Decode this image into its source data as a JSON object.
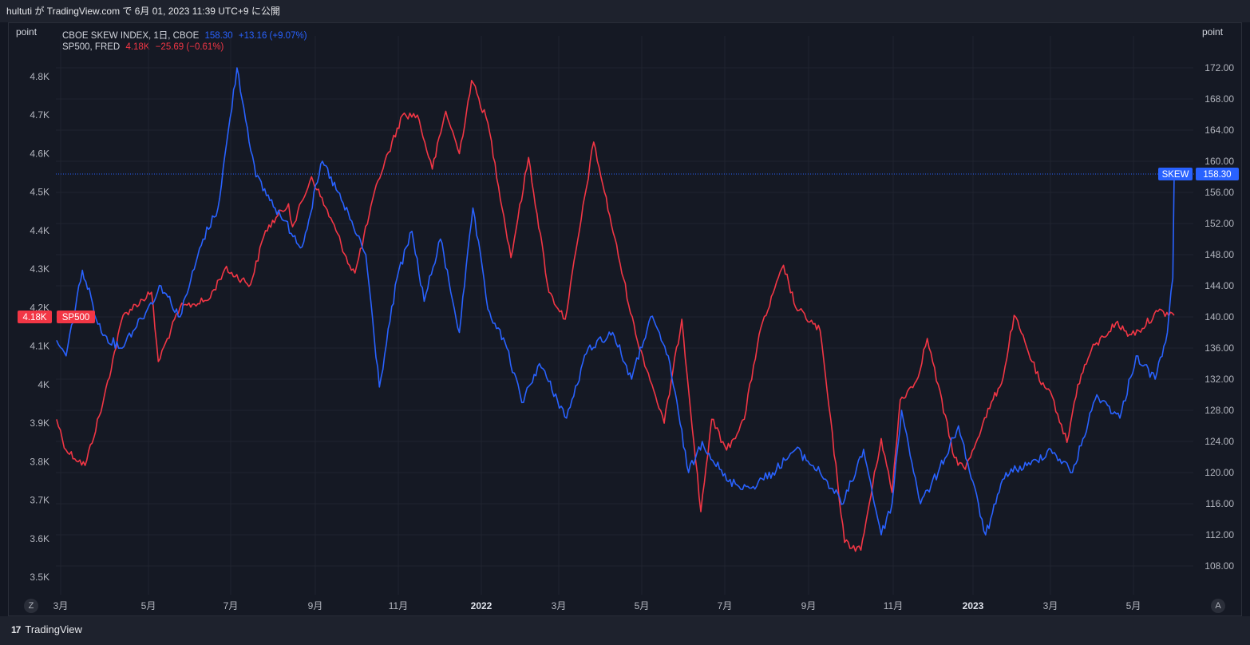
{
  "header": {
    "text": "hultuti が TradingView.com で 6月 01, 2023 11:39 UTC+9 に公開"
  },
  "units": {
    "left": "point",
    "right": "point"
  },
  "legend": [
    {
      "name": "CBOE SKEW INDEX, 1日, CBOE",
      "value": "158.30",
      "change": "+13.16 (+9.07%)"
    },
    {
      "name": "SP500, FRED",
      "value": "4.18K",
      "change": "−25.69 (−0.61%)"
    }
  ],
  "badges": {
    "sp500_value": "4.18K",
    "sp500_label": "SP500",
    "skew_label": "SKEW",
    "skew_value": "158.30"
  },
  "corner": {
    "left": "Z",
    "right": "A"
  },
  "footer": {
    "brand": "TradingView",
    "logo": "17"
  },
  "colors": {
    "skew": "#2962ff",
    "sp500": "#f23645",
    "background": "#131722"
  },
  "chart_data": {
    "type": "line",
    "x_ticks": [
      "3月",
      "5月",
      "7月",
      "9月",
      "11月",
      "2022",
      "3月",
      "5月",
      "7月",
      "9月",
      "11月",
      "2023",
      "3月",
      "5月"
    ],
    "left_axis": {
      "series": "SP500",
      "ticks": [
        "4.8K",
        "4.7K",
        "4.6K",
        "4.5K",
        "4.4K",
        "4.3K",
        "4.2K",
        "4.1K",
        "4K",
        "3.9K",
        "3.8K",
        "3.7K",
        "3.6K",
        "3.5K"
      ],
      "range": [
        3450,
        4860
      ]
    },
    "right_axis": {
      "series": "SKEW",
      "ticks": [
        "172.00",
        "168.00",
        "164.00",
        "160.00",
        "156.00",
        "152.00",
        "148.00",
        "144.00",
        "140.00",
        "136.00",
        "132.00",
        "128.00",
        "124.00",
        "120.00",
        "116.00",
        "112.00",
        "108.00"
      ],
      "range": [
        106,
        174
      ]
    },
    "series": [
      {
        "name": "SP500, FRED",
        "axis": "left",
        "color": "#f23645",
        "x": [
          "2021-02-26",
          "2021-03-05",
          "2021-03-19",
          "2021-04-01",
          "2021-04-16",
          "2021-05-07",
          "2021-05-12",
          "2021-05-28",
          "2021-06-18",
          "2021-06-30",
          "2021-07-19",
          "2021-07-30",
          "2021-08-16",
          "2021-08-19",
          "2021-09-02",
          "2021-09-20",
          "2021-09-30",
          "2021-10-04",
          "2021-10-21",
          "2021-11-08",
          "2021-11-19",
          "2021-11-30",
          "2021-12-10",
          "2021-12-20",
          "2021-12-29",
          "2022-01-10",
          "2022-01-27",
          "2022-02-09",
          "2022-02-24",
          "2022-03-08",
          "2022-03-29",
          "2022-04-06",
          "2022-04-29",
          "2022-05-11",
          "2022-05-20",
          "2022-06-02",
          "2022-06-16",
          "2022-06-24",
          "2022-07-05",
          "2022-07-18",
          "2022-07-29",
          "2022-08-16",
          "2022-08-25",
          "2022-09-12",
          "2022-09-30",
          "2022-10-12",
          "2022-10-27",
          "2022-11-04",
          "2022-11-10",
          "2022-11-22",
          "2022-11-30",
          "2022-12-20",
          "2022-12-28",
          "2023-01-10",
          "2023-01-25",
          "2023-02-02",
          "2023-02-22",
          "2023-03-02",
          "2023-03-13",
          "2023-03-21",
          "2023-03-31",
          "2023-04-18",
          "2023-04-28",
          "2023-05-05",
          "2023-05-19",
          "2023-05-31"
        ],
        "values": [
          3910,
          3830,
          3790,
          3950,
          4180,
          4240,
          4060,
          4200,
          4220,
          4300,
          4260,
          4400,
          4470,
          4410,
          4540,
          4400,
          4310,
          4290,
          4530,
          4700,
          4700,
          4560,
          4710,
          4600,
          4790,
          4680,
          4330,
          4590,
          4240,
          4170,
          4630,
          4500,
          4130,
          4000,
          3900,
          4170,
          3670,
          3910,
          3830,
          3910,
          4130,
          4310,
          4200,
          4140,
          3590,
          3570,
          3860,
          3720,
          3960,
          4010,
          4120,
          3810,
          3780,
          3900,
          4020,
          4180,
          4000,
          3970,
          3850,
          4000,
          4090,
          4160,
          4130,
          4140,
          4190,
          4180
        ]
      },
      {
        "name": "CBOE SKEW INDEX, 1日, CBOE",
        "axis": "right",
        "color": "#2962ff",
        "x": [
          "2021-02-26",
          "2021-03-05",
          "2021-03-17",
          "2021-03-31",
          "2021-04-14",
          "2021-05-04",
          "2021-05-14",
          "2021-05-28",
          "2021-06-14",
          "2021-06-25",
          "2021-07-09",
          "2021-07-23",
          "2021-08-10",
          "2021-08-26",
          "2021-09-10",
          "2021-09-24",
          "2021-10-12",
          "2021-10-22",
          "2021-11-04",
          "2021-11-15",
          "2021-11-24",
          "2021-12-06",
          "2021-12-20",
          "2021-12-30",
          "2022-01-10",
          "2022-01-24",
          "2022-02-04",
          "2022-02-17",
          "2022-03-09",
          "2022-03-25",
          "2022-04-12",
          "2022-04-26",
          "2022-05-10",
          "2022-05-23",
          "2022-06-07",
          "2022-06-17",
          "2022-07-05",
          "2022-07-22",
          "2022-08-08",
          "2022-08-25",
          "2022-09-12",
          "2022-09-29",
          "2022-10-14",
          "2022-10-27",
          "2022-11-04",
          "2022-11-11",
          "2022-11-25",
          "2022-12-08",
          "2022-12-23",
          "2023-01-12",
          "2023-01-27",
          "2023-02-14",
          "2023-03-01",
          "2023-03-17",
          "2023-04-04",
          "2023-04-21",
          "2023-05-03",
          "2023-05-17",
          "2023-05-26",
          "2023-05-30",
          "2023-05-31"
        ],
        "values": [
          137,
          135,
          146,
          138,
          136,
          141,
          144,
          140,
          150,
          154,
          172,
          158,
          153,
          149,
          160,
          155,
          148,
          131,
          145,
          151,
          142,
          150,
          138,
          154,
          141,
          136,
          129,
          134,
          127,
          136,
          138,
          132,
          140,
          135,
          120,
          124,
          119,
          118,
          120,
          123,
          120,
          116,
          123,
          112,
          116,
          128,
          116,
          120,
          126,
          112,
          120,
          121,
          123,
          120,
          130,
          127,
          135,
          132,
          138,
          145,
          158.3
        ]
      }
    ]
  }
}
